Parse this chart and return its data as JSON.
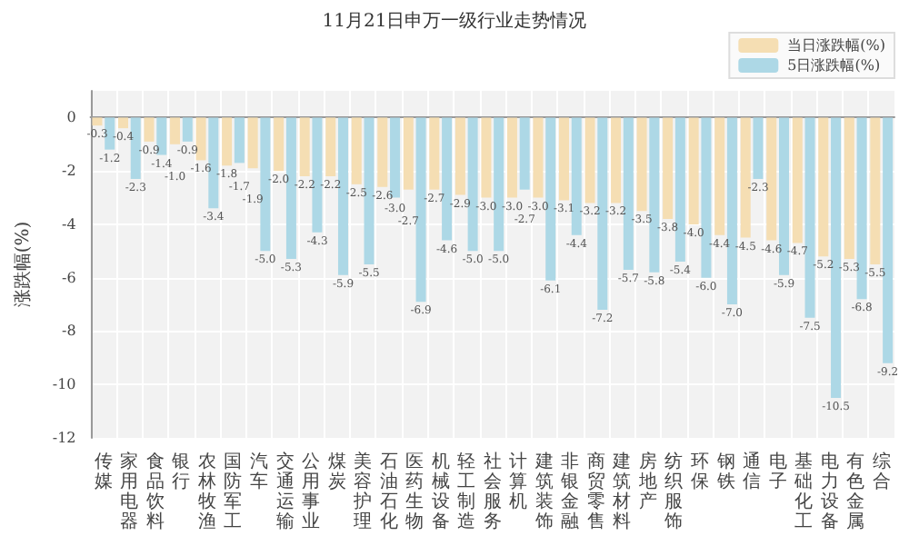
{
  "chart_data": {
    "type": "bar",
    "title": "11月21日申万一级行业走势情况",
    "ylabel": "涨跌幅(%)",
    "categories": [
      "传媒",
      "家用电器",
      "食品饮料",
      "银行",
      "农林牧渔",
      "国防军工",
      "汽车",
      "交通运输",
      "公用事业",
      "煤炭",
      "美容护理",
      "石油石化",
      "医药生物",
      "机械设备",
      "轻工制造",
      "社会服务",
      "计算机",
      "建筑装饰",
      "非银金融",
      "商贸零售",
      "建筑材料",
      "房地产",
      "纺织服饰",
      "环保",
      "钢铁",
      "通信",
      "电子",
      "基础化工",
      "电力设备",
      "有色金属",
      "综合"
    ],
    "series": [
      {
        "name": "当日涨跌幅(%)",
        "color": "#f5deb3",
        "values": [
          -0.3,
          -0.4,
          -0.9,
          -1.0,
          -1.6,
          -1.8,
          -1.9,
          -2.0,
          -2.2,
          -2.2,
          -2.5,
          -2.6,
          -2.7,
          -2.7,
          -2.9,
          -3.0,
          -3.0,
          -3.0,
          -3.1,
          -3.2,
          -3.2,
          -3.5,
          -3.8,
          -4.0,
          -4.4,
          -4.5,
          -4.6,
          -4.7,
          -5.2,
          -5.3,
          -5.5
        ],
        "value_labels": [
          "-0.3",
          "-0.4",
          "-0.9",
          "-1.0",
          "-1.6",
          "-1.8",
          "-1.9",
          "-2.0",
          "-2.2",
          "-2.2",
          "-2.5",
          "-2.6",
          "-2.7",
          "-2.7",
          "-2.9",
          "-3.0",
          "-3.0",
          "-3.0",
          "-3.1",
          "-3.2",
          "-3.2",
          "-3.5",
          "-3.8",
          "-4.0",
          "-4.4",
          "-4.5",
          "-4.6",
          "-4.7",
          "-5.2",
          "-5.3",
          "-5.5"
        ]
      },
      {
        "name": "5日涨跌幅(%)",
        "color": "#add8e6",
        "values": [
          -1.2,
          -2.3,
          -1.4,
          -0.9,
          -3.4,
          -1.7,
          -5.0,
          -5.3,
          -4.3,
          -5.9,
          -5.5,
          -3.0,
          -6.9,
          -4.6,
          -5.0,
          -5.0,
          -2.7,
          -6.1,
          -4.4,
          -7.2,
          -5.7,
          -5.8,
          -5.4,
          -6.0,
          -7.0,
          -2.3,
          -5.9,
          -7.5,
          -10.5,
          -6.8,
          -9.2
        ],
        "value_labels": [
          "-1.2",
          "-2.3",
          "-1.4",
          "-0.9",
          "-3.4",
          "-1.7",
          "-5.0",
          "-5.3",
          "-4.3",
          "-5.9",
          "-5.5",
          "-3.0",
          "-6.9",
          "-4.6",
          "-5.0",
          "-5.0",
          "-2.7",
          "-6.1",
          "-4.4",
          "-7.2",
          "-5.7",
          "-5.8",
          "-5.4",
          "-6.0",
          "-7.0",
          "-2.3",
          "-5.9",
          "-7.5",
          "-10.5",
          "-6.8",
          "-9.2"
        ]
      }
    ],
    "ylim": [
      -12,
      1
    ],
    "yticks": [
      -12,
      -10,
      -8,
      -6,
      -4,
      -2,
      0
    ],
    "grid": true,
    "legend": "top right"
  }
}
